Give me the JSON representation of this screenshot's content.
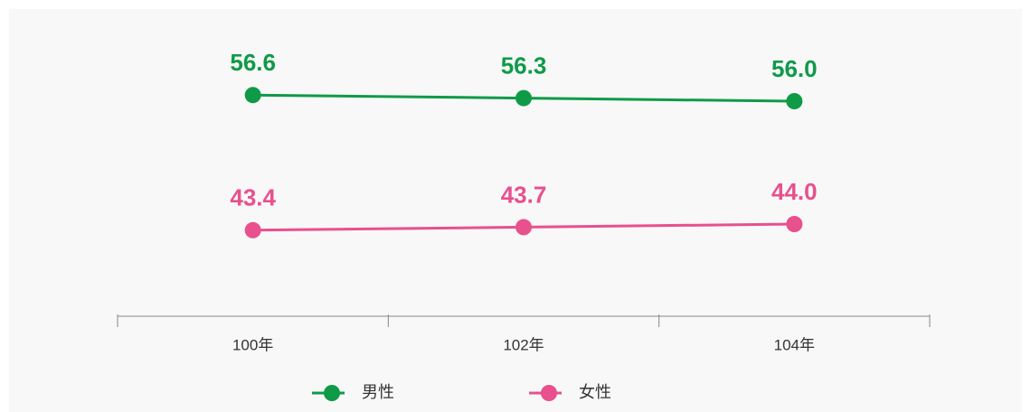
{
  "chart_data": {
    "type": "line",
    "categories": [
      "100年",
      "102年",
      "104年"
    ],
    "series": [
      {
        "name": "男性",
        "color": "#0f9a48",
        "values": [
          56.6,
          56.3,
          56.0
        ],
        "value_labels": [
          "56.6",
          "56.3",
          "56.0"
        ]
      },
      {
        "name": "女性",
        "color": "#e8508e",
        "values": [
          43.4,
          43.7,
          44.0
        ],
        "value_labels": [
          "43.4",
          "43.7",
          "44.0"
        ]
      }
    ],
    "ylim": [
      35,
      65
    ]
  }
}
